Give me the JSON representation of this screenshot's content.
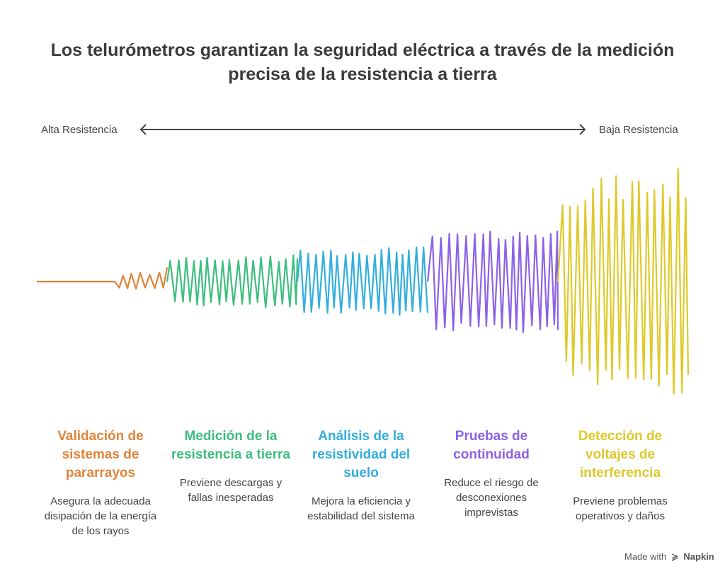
{
  "title": "Los telurómetros garantizan la seguridad eléctrica a través de la medición precisa de la resistencia a tierra",
  "axis": {
    "left_label": "Alta Resistencia",
    "right_label": "Baja Resistencia",
    "arrow_icon": "double-headed-arrow-icon"
  },
  "segments": [
    {
      "title": "Validación de sistemas de pararrayos",
      "description": "Asegura la adecuada disipación de la energía de los rayos",
      "color": "#E0843A"
    },
    {
      "title": "Medición de la resistencia a tierra",
      "description": "Previene descargas y fallas inesperadas",
      "color": "#3DBE7E"
    },
    {
      "title": "Análisis de la resistividad del suelo",
      "description": "Mejora la eficiencia y estabilidad del sistema",
      "color": "#33AEDC"
    },
    {
      "title": "Pruebas de continuidad",
      "description": "Reduce el riesgo de desconexiones imprevistas",
      "color": "#8B62E8"
    },
    {
      "title": "Detección de voltajes de interferencia",
      "description": "Previene problemas operativos y daños",
      "color": "#DEC92A"
    }
  ],
  "footer": {
    "made_with": "Made with",
    "brand": "Napkin",
    "brand_icon": "napkin-logo-icon"
  }
}
